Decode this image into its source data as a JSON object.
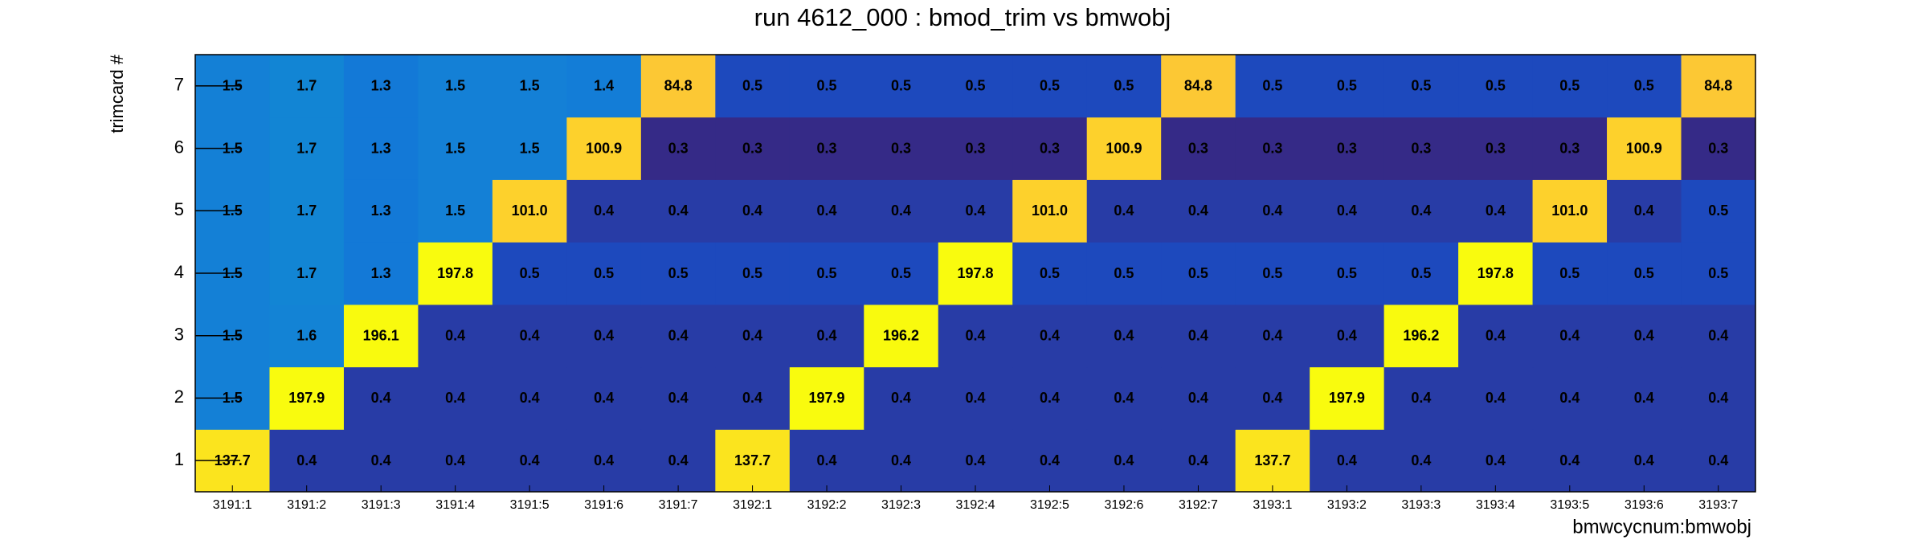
{
  "chart_data": {
    "type": "heatmap",
    "title": "run 4612_000 : bmod_trim vs bmwobj",
    "x_label": "bmwcycnum:bmwobj",
    "y_label": "trimcard #",
    "categories": [
      "3191:1",
      "3191:2",
      "3191:3",
      "3191:4",
      "3191:5",
      "3191:6",
      "3191:7",
      "3192:1",
      "3192:2",
      "3192:3",
      "3192:4",
      "3192:5",
      "3192:6",
      "3192:7",
      "3193:1",
      "3193:2",
      "3193:3",
      "3193:4",
      "3193:5",
      "3193:6",
      "3193:7"
    ],
    "y": [
      1,
      2,
      3,
      4,
      5,
      6,
      7
    ],
    "ylim": [
      0.5,
      7.5
    ],
    "yticks": [
      1,
      2,
      3,
      4,
      5,
      6,
      7
    ],
    "zlim": [
      0.3,
      197.9
    ],
    "zlog": true,
    "colormap": "bird",
    "z": [
      [
        137.7,
        0.4,
        0.4,
        0.4,
        0.4,
        0.4,
        0.4,
        137.7,
        0.4,
        0.4,
        0.4,
        0.4,
        0.4,
        0.4,
        137.7,
        0.4,
        0.4,
        0.4,
        0.4,
        0.4,
        0.4
      ],
      [
        1.5,
        197.9,
        0.4,
        0.4,
        0.4,
        0.4,
        0.4,
        0.4,
        197.9,
        0.4,
        0.4,
        0.4,
        0.4,
        0.4,
        0.4,
        197.9,
        0.4,
        0.4,
        0.4,
        0.4,
        0.4
      ],
      [
        1.5,
        1.6,
        196.1,
        0.4,
        0.4,
        0.4,
        0.4,
        0.4,
        0.4,
        196.2,
        0.4,
        0.4,
        0.4,
        0.4,
        0.4,
        0.4,
        196.2,
        0.4,
        0.4,
        0.4,
        0.4
      ],
      [
        1.5,
        1.7,
        1.3,
        197.8,
        0.5,
        0.5,
        0.5,
        0.5,
        0.5,
        0.5,
        197.8,
        0.5,
        0.5,
        0.5,
        0.5,
        0.5,
        0.5,
        197.8,
        0.5,
        0.5,
        0.5
      ],
      [
        1.5,
        1.7,
        1.3,
        1.5,
        101,
        0.4,
        0.4,
        0.4,
        0.4,
        0.4,
        0.4,
        101,
        0.4,
        0.4,
        0.4,
        0.4,
        0.4,
        0.4,
        101,
        0.4,
        0.5
      ],
      [
        1.5,
        1.7,
        1.3,
        1.5,
        1.5,
        100.9,
        0.3,
        0.3,
        0.3,
        0.3,
        0.3,
        0.3,
        100.9,
        0.3,
        0.3,
        0.3,
        0.3,
        0.3,
        0.3,
        100.9,
        0.3
      ],
      [
        1.5,
        1.7,
        1.3,
        1.5,
        1.5,
        1.4,
        84.8,
        0.5,
        0.5,
        0.5,
        0.5,
        0.5,
        0.5,
        84.8,
        0.5,
        0.5,
        0.5,
        0.5,
        0.5,
        0.5,
        84.8
      ]
    ],
    "value_labels": [
      [
        "137.7",
        "0.4",
        "0.4",
        "0.4",
        "0.4",
        "0.4",
        "0.4",
        "137.7",
        "0.4",
        "0.4",
        "0.4",
        "0.4",
        "0.4",
        "0.4",
        "137.7",
        "0.4",
        "0.4",
        "0.4",
        "0.4",
        "0.4",
        "0.4"
      ],
      [
        "1.5",
        "197.9",
        "0.4",
        "0.4",
        "0.4",
        "0.4",
        "0.4",
        "0.4",
        "197.9",
        "0.4",
        "0.4",
        "0.4",
        "0.4",
        "0.4",
        "0.4",
        "197.9",
        "0.4",
        "0.4",
        "0.4",
        "0.4",
        "0.4"
      ],
      [
        "1.5",
        "1.6",
        "196.1",
        "0.4",
        "0.4",
        "0.4",
        "0.4",
        "0.4",
        "0.4",
        "196.2",
        "0.4",
        "0.4",
        "0.4",
        "0.4",
        "0.4",
        "0.4",
        "196.2",
        "0.4",
        "0.4",
        "0.4",
        "0.4"
      ],
      [
        "1.5",
        "1.7",
        "1.3",
        "197.8",
        "0.5",
        "0.5",
        "0.5",
        "0.5",
        "0.5",
        "0.5",
        "197.8",
        "0.5",
        "0.5",
        "0.5",
        "0.5",
        "0.5",
        "0.5",
        "197.8",
        "0.5",
        "0.5",
        "0.5"
      ],
      [
        "1.5",
        "1.7",
        "1.3",
        "1.5",
        "101.0",
        "0.4",
        "0.4",
        "0.4",
        "0.4",
        "0.4",
        "0.4",
        "101.0",
        "0.4",
        "0.4",
        "0.4",
        "0.4",
        "0.4",
        "0.4",
        "101.0",
        "0.4",
        "0.5"
      ],
      [
        "1.5",
        "1.7",
        "1.3",
        "1.5",
        "1.5",
        "100.9",
        "0.3",
        "0.3",
        "0.3",
        "0.3",
        "0.3",
        "0.3",
        "100.9",
        "0.3",
        "0.3",
        "0.3",
        "0.3",
        "0.3",
        "0.3",
        "100.9",
        "0.3"
      ],
      [
        "1.5",
        "1.7",
        "1.3",
        "1.5",
        "1.5",
        "1.4",
        "84.8",
        "0.5",
        "0.5",
        "0.5",
        "0.5",
        "0.5",
        "0.5",
        "84.8",
        "0.5",
        "0.5",
        "0.5",
        "0.5",
        "0.5",
        "0.5",
        "84.8"
      ]
    ]
  }
}
